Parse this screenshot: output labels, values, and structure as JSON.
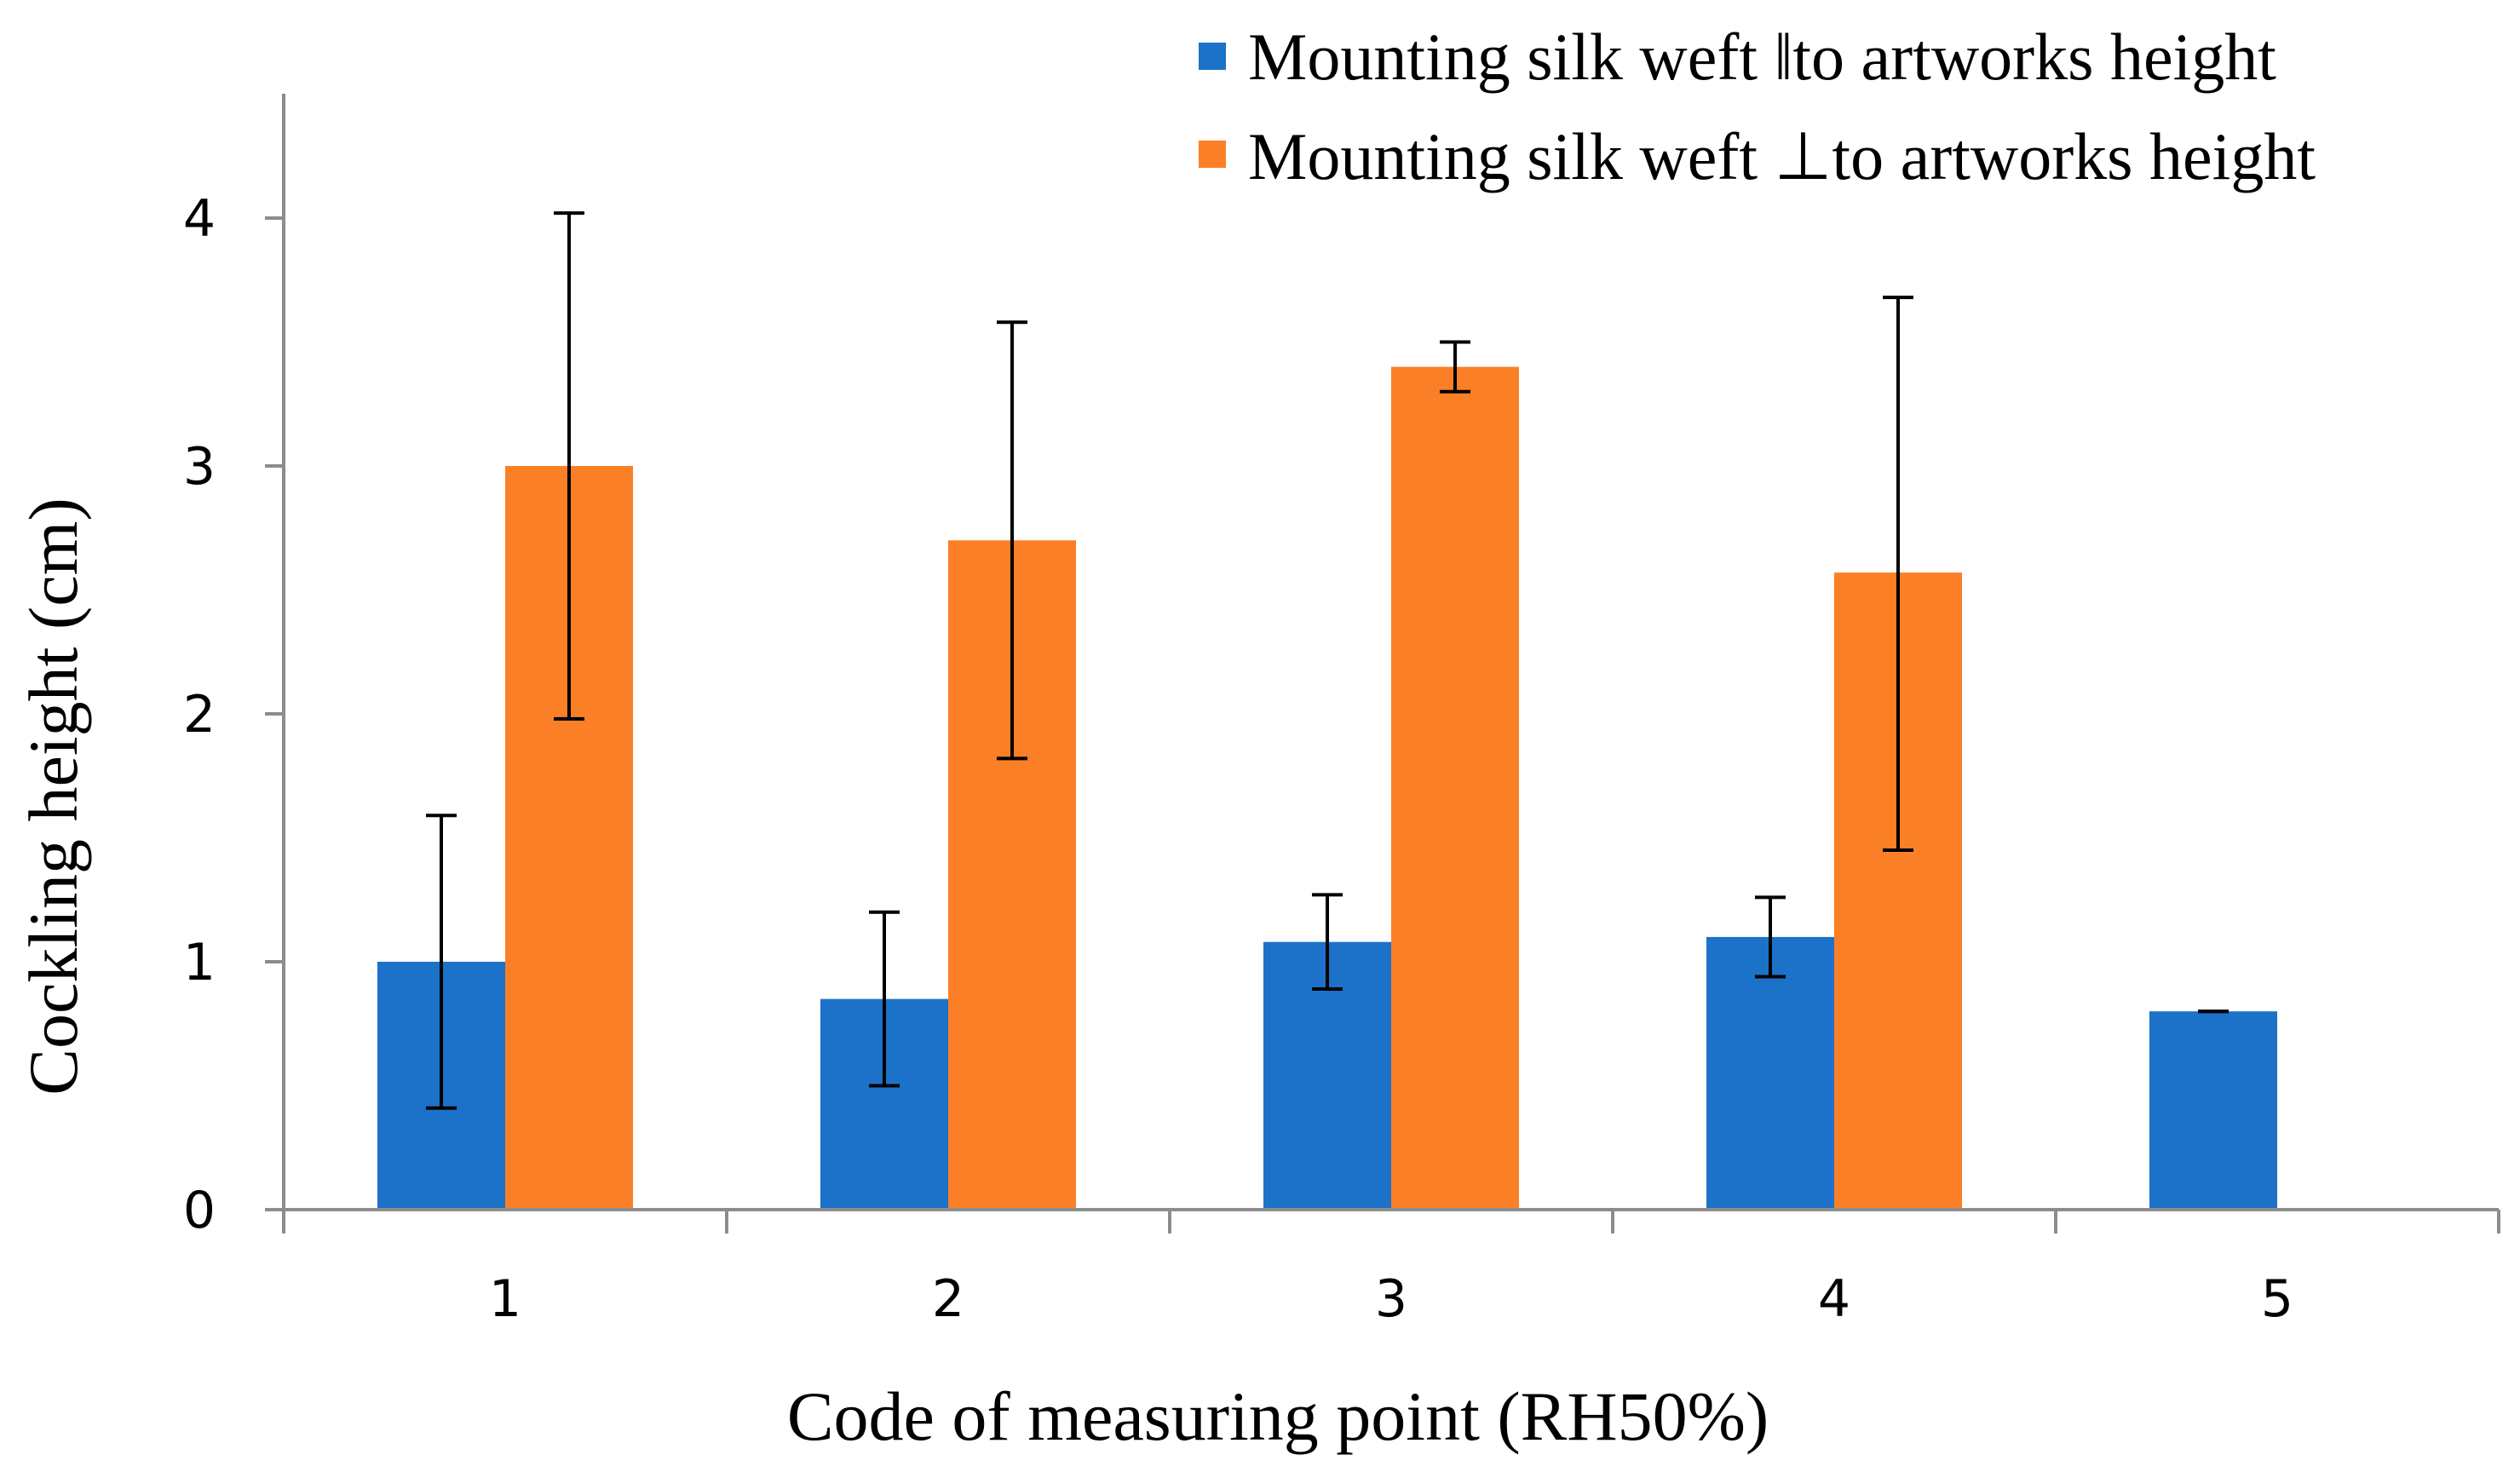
{
  "chart_data": {
    "type": "bar",
    "title": "",
    "xlabel": "Code of measuring point (RH50%)",
    "ylabel": "Cockling height (cm)",
    "categories": [
      "1",
      "2",
      "3",
      "4",
      "5"
    ],
    "ylim": [
      0,
      4.5
    ],
    "yticks": [
      "0",
      "1",
      "2",
      "3",
      "4"
    ],
    "grid": false,
    "legend_position": "top-right",
    "series": [
      {
        "name": "Mounting silk weft ‖to artworks height",
        "color": "#1b72c8",
        "values": [
          1.0,
          0.85,
          1.08,
          1.1,
          0.8
        ],
        "error_low": [
          0.41,
          0.5,
          0.89,
          0.94,
          0.8
        ],
        "error_high": [
          1.59,
          1.2,
          1.27,
          1.26,
          0.8
        ]
      },
      {
        "name": "Mounting silk weft ⊥to artworks height",
        "color": "#fb7f26",
        "values": [
          3.0,
          2.7,
          3.4,
          2.57,
          null
        ],
        "error_low": [
          1.98,
          1.82,
          3.3,
          1.45,
          null
        ],
        "error_high": [
          4.02,
          3.58,
          3.5,
          3.68,
          null
        ]
      }
    ]
  }
}
